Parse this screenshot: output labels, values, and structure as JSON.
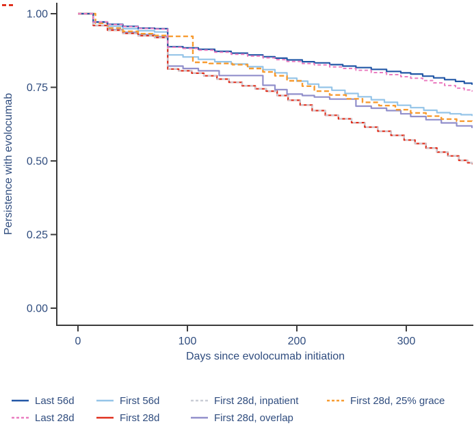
{
  "colors": {
    "text": "#2f4c7e",
    "axis": "#3b3b3b",
    "background": "#ffffff"
  },
  "chart_data": {
    "type": "line",
    "subtype": "kaplan-meier-step",
    "title": "",
    "xlabel": "Days since evolocumab initiation",
    "ylabel": "Persistence with evolocumab",
    "xlim": [
      0,
      362
    ],
    "ylim": [
      0,
      1.04
    ],
    "grid": false,
    "legend_position": "bottom",
    "xticks": [
      {
        "value": 0,
        "label": "0"
      },
      {
        "value": 100,
        "label": "100"
      },
      {
        "value": 200,
        "label": "200"
      },
      {
        "value": 300,
        "label": "300"
      }
    ],
    "yticks": [
      {
        "value": 1.0,
        "label": "1.00"
      },
      {
        "value": 0.75,
        "label": "0.75"
      },
      {
        "value": 0.5,
        "label": "0.50"
      },
      {
        "value": 0.25,
        "label": "0.25"
      },
      {
        "value": 0.0,
        "label": "0.00"
      }
    ],
    "series": [
      {
        "name": "Last 56d",
        "slug": "last-56d",
        "color": "#2257a6",
        "dash": null,
        "width": 2.2,
        "z": 6,
        "legend": {
          "row": 0,
          "col": 0
        },
        "points": [
          [
            0,
            1
          ],
          [
            14,
            0.972
          ],
          [
            27,
            0.964
          ],
          [
            41,
            0.957
          ],
          [
            55,
            0.951
          ],
          [
            70,
            0.949
          ],
          [
            82,
            0.888
          ],
          [
            96,
            0.884
          ],
          [
            110,
            0.879
          ],
          [
            125,
            0.872
          ],
          [
            140,
            0.866
          ],
          [
            155,
            0.86
          ],
          [
            169,
            0.854
          ],
          [
            180,
            0.849
          ],
          [
            191,
            0.843
          ],
          [
            205,
            0.837
          ],
          [
            216,
            0.833
          ],
          [
            230,
            0.827
          ],
          [
            242,
            0.822
          ],
          [
            254,
            0.817
          ],
          [
            268,
            0.811
          ],
          [
            282,
            0.804
          ],
          [
            295,
            0.799
          ],
          [
            304,
            0.795
          ],
          [
            315,
            0.788
          ],
          [
            325,
            0.782
          ],
          [
            335,
            0.776
          ],
          [
            345,
            0.77
          ],
          [
            353,
            0.764
          ],
          [
            360,
            0.761
          ]
        ]
      },
      {
        "name": "First 56d",
        "slug": "first-56d",
        "color": "#94c4e8",
        "dash": null,
        "width": 2.2,
        "z": 1,
        "legend": {
          "row": 0,
          "col": 1
        },
        "points": [
          [
            0,
            1
          ],
          [
            14,
            0.97
          ],
          [
            27,
            0.957
          ],
          [
            41,
            0.949
          ],
          [
            55,
            0.942
          ],
          [
            70,
            0.938
          ],
          [
            82,
            0.86
          ],
          [
            96,
            0.853
          ],
          [
            110,
            0.845
          ],
          [
            125,
            0.837
          ],
          [
            140,
            0.829
          ],
          [
            155,
            0.82
          ],
          [
            169,
            0.81
          ],
          [
            180,
            0.799
          ],
          [
            191,
            0.781
          ],
          [
            200,
            0.771
          ],
          [
            210,
            0.761
          ],
          [
            220,
            0.75
          ],
          [
            232,
            0.74
          ],
          [
            244,
            0.729
          ],
          [
            256,
            0.718
          ],
          [
            268,
            0.708
          ],
          [
            280,
            0.699
          ],
          [
            292,
            0.689
          ],
          [
            304,
            0.681
          ],
          [
            316,
            0.672
          ],
          [
            328,
            0.664
          ],
          [
            340,
            0.66
          ],
          [
            350,
            0.657
          ],
          [
            360,
            0.655
          ]
        ]
      },
      {
        "name": "First 28d, inpatient",
        "slug": "first-28d-inpatient",
        "color": "#c9cdd6",
        "dash": "4.5 4",
        "width": 2,
        "z": 4,
        "legend": {
          "row": 0,
          "col": 2
        },
        "points": [
          [
            0,
            1
          ],
          [
            14,
            0.96
          ],
          [
            27,
            0.944
          ],
          [
            41,
            0.933
          ],
          [
            55,
            0.925
          ],
          [
            70,
            0.919
          ],
          [
            82,
            0.812
          ],
          [
            92,
            0.806
          ],
          [
            104,
            0.798
          ],
          [
            115,
            0.789
          ],
          [
            127,
            0.778
          ],
          [
            138,
            0.767
          ],
          [
            150,
            0.755
          ],
          [
            162,
            0.745
          ],
          [
            172,
            0.737
          ],
          [
            182,
            0.722
          ],
          [
            192,
            0.706
          ],
          [
            203,
            0.69
          ],
          [
            214,
            0.671
          ],
          [
            226,
            0.655
          ],
          [
            238,
            0.643
          ],
          [
            250,
            0.63
          ],
          [
            262,
            0.615
          ],
          [
            274,
            0.601
          ],
          [
            286,
            0.587
          ],
          [
            298,
            0.571
          ],
          [
            308,
            0.559
          ],
          [
            318,
            0.544
          ],
          [
            328,
            0.53
          ],
          [
            338,
            0.517
          ],
          [
            348,
            0.502
          ],
          [
            356,
            0.494
          ],
          [
            360,
            0.491
          ]
        ]
      },
      {
        "name": "First 28d, 25% grace",
        "slug": "first-28d-25-grace",
        "color": "#f79b30",
        "dash": "7 4",
        "width": 2.4,
        "z": 5,
        "legend": {
          "row": 0,
          "col": 3
        },
        "points": [
          [
            0,
            1
          ],
          [
            16,
            0.968
          ],
          [
            27,
            0.951
          ],
          [
            41,
            0.94
          ],
          [
            55,
            0.932
          ],
          [
            70,
            0.926
          ],
          [
            82,
            0.923
          ],
          [
            105,
            0.835
          ],
          [
            120,
            0.831
          ],
          [
            141,
            0.827
          ],
          [
            155,
            0.814
          ],
          [
            169,
            0.802
          ],
          [
            180,
            0.789
          ],
          [
            191,
            0.772
          ],
          [
            205,
            0.754
          ],
          [
            216,
            0.737
          ],
          [
            230,
            0.724
          ],
          [
            245,
            0.711
          ],
          [
            260,
            0.699
          ],
          [
            275,
            0.688
          ],
          [
            290,
            0.674
          ],
          [
            304,
            0.663
          ],
          [
            318,
            0.652
          ],
          [
            332,
            0.642
          ],
          [
            346,
            0.635
          ],
          [
            360,
            0.632
          ]
        ]
      },
      {
        "name": "Last 28d",
        "slug": "last-28d",
        "color": "#ea7cc0",
        "dash": "5 3.5",
        "width": 2,
        "z": 7,
        "legend": {
          "row": 1,
          "col": 0
        },
        "points": [
          [
            0,
            1
          ],
          [
            14,
            0.972
          ],
          [
            27,
            0.963
          ],
          [
            41,
            0.956
          ],
          [
            55,
            0.95
          ],
          [
            70,
            0.948
          ],
          [
            82,
            0.886
          ],
          [
            96,
            0.882
          ],
          [
            110,
            0.876
          ],
          [
            125,
            0.869
          ],
          [
            140,
            0.862
          ],
          [
            155,
            0.856
          ],
          [
            169,
            0.85
          ],
          [
            180,
            0.844
          ],
          [
            191,
            0.838
          ],
          [
            205,
            0.831
          ],
          [
            216,
            0.826
          ],
          [
            230,
            0.819
          ],
          [
            242,
            0.814
          ],
          [
            254,
            0.808
          ],
          [
            268,
            0.8
          ],
          [
            282,
            0.793
          ],
          [
            295,
            0.786
          ],
          [
            304,
            0.781
          ],
          [
            315,
            0.773
          ],
          [
            325,
            0.765
          ],
          [
            335,
            0.756
          ],
          [
            345,
            0.747
          ],
          [
            353,
            0.741
          ],
          [
            360,
            0.738
          ]
        ]
      },
      {
        "name": "First 28d",
        "slug": "first-28d",
        "color": "#e0301e",
        "dash": null,
        "width": 2.2,
        "z": 3,
        "legend": {
          "row": 1,
          "col": 1
        },
        "points": [
          [
            0,
            1
          ],
          [
            14,
            0.96
          ],
          [
            27,
            0.944
          ],
          [
            41,
            0.933
          ],
          [
            55,
            0.925
          ],
          [
            70,
            0.919
          ],
          [
            82,
            0.812
          ],
          [
            92,
            0.806
          ],
          [
            104,
            0.798
          ],
          [
            115,
            0.789
          ],
          [
            127,
            0.778
          ],
          [
            138,
            0.767
          ],
          [
            150,
            0.755
          ],
          [
            162,
            0.745
          ],
          [
            172,
            0.737
          ],
          [
            182,
            0.722
          ],
          [
            192,
            0.706
          ],
          [
            203,
            0.69
          ],
          [
            214,
            0.671
          ],
          [
            226,
            0.655
          ],
          [
            238,
            0.643
          ],
          [
            250,
            0.63
          ],
          [
            262,
            0.615
          ],
          [
            274,
            0.601
          ],
          [
            286,
            0.587
          ],
          [
            298,
            0.571
          ],
          [
            308,
            0.559
          ],
          [
            318,
            0.544
          ],
          [
            328,
            0.53
          ],
          [
            338,
            0.517
          ],
          [
            348,
            0.502
          ],
          [
            356,
            0.494
          ],
          [
            360,
            0.491
          ]
        ]
      },
      {
        "name": "First 28d, overlap",
        "slug": "first-28d-overlap",
        "color": "#918fcb",
        "dash": null,
        "width": 2.2,
        "z": 2,
        "legend": {
          "row": 1,
          "col": 2
        },
        "points": [
          [
            0,
            1
          ],
          [
            14,
            0.96
          ],
          [
            27,
            0.946
          ],
          [
            41,
            0.937
          ],
          [
            55,
            0.929
          ],
          [
            70,
            0.922
          ],
          [
            82,
            0.822
          ],
          [
            96,
            0.814
          ],
          [
            110,
            0.806
          ],
          [
            129,
            0.79
          ],
          [
            169,
            0.757
          ],
          [
            180,
            0.742
          ],
          [
            191,
            0.727
          ],
          [
            205,
            0.722
          ],
          [
            216,
            0.717
          ],
          [
            230,
            0.71
          ],
          [
            254,
            0.686
          ],
          [
            268,
            0.679
          ],
          [
            282,
            0.671
          ],
          [
            295,
            0.66
          ],
          [
            304,
            0.651
          ],
          [
            318,
            0.64
          ],
          [
            332,
            0.629
          ],
          [
            346,
            0.619
          ],
          [
            360,
            0.614
          ]
        ]
      }
    ]
  }
}
